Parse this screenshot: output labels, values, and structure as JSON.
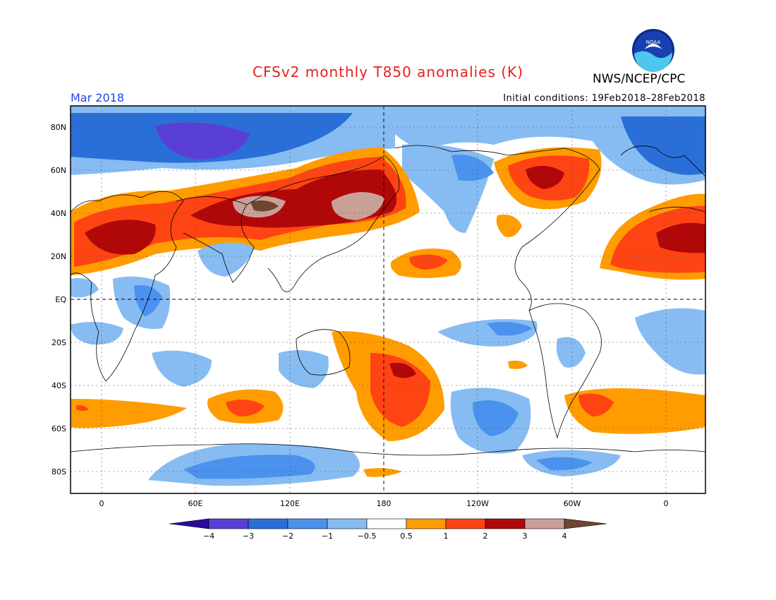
{
  "title": "CFSv2 monthly T850 anomalies (K)",
  "agency": "NWS/NCEP/CPC",
  "logo_text": "NOAA",
  "forecast_month": "Mar 2018",
  "initial_conditions": "Initial conditions: 19Feb2018–28Feb2018",
  "colors": {
    "title": "#e8201a",
    "month": "#2244ee",
    "scale": [
      "#2a0a9c",
      "#5a3fd6",
      "#2a6fd8",
      "#4a92ee",
      "#86bcf2",
      "#ffffff",
      "#ff9c00",
      "#ff4414",
      "#b00808",
      "#c8a098",
      "#6e4630"
    ]
  },
  "map": {
    "lat_labels": [
      "80N",
      "60N",
      "40N",
      "20N",
      "EQ",
      "20S",
      "40S",
      "60S",
      "80S"
    ],
    "lon_labels": [
      "0",
      "60E",
      "120E",
      "180",
      "120W",
      "60W",
      "0"
    ]
  },
  "colorbar": {
    "tick_labels": [
      "−4",
      "−3",
      "−2",
      "−1",
      "−0.5",
      "0.5",
      "1",
      "2",
      "3",
      "4"
    ]
  }
}
